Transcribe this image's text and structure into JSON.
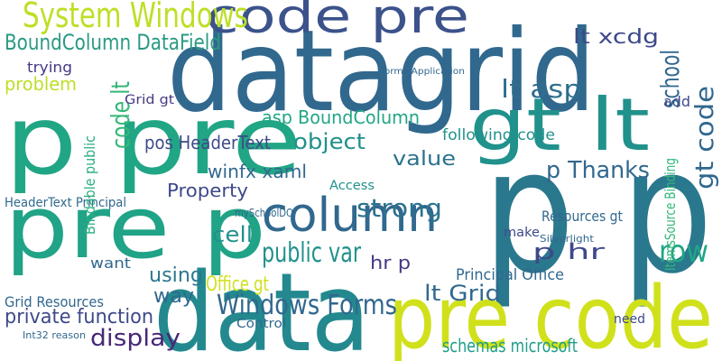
{
  "words": [
    "datagrid",
    "p pre",
    "pre p",
    "p p",
    "pre code",
    "data",
    "code pre",
    "gt lt",
    "column",
    "Windows Forms",
    "System Windows",
    "BoundColumn DataField",
    "lt xcdg",
    "school",
    "gt code",
    "code lt",
    "lt asp",
    "pos HeaderText",
    "asp BoundColumn",
    "object",
    "value",
    "following code",
    "winfx xaml",
    "p Thanks",
    "Property",
    "cell",
    "strong",
    "public var",
    "hr p",
    "p hr",
    "row",
    "lt Grid",
    "Principal Office",
    "using",
    "Office gt",
    "way",
    "private function",
    "Grid Resources",
    "display",
    "schemas microsoft",
    "HeaderText Principal",
    "problem",
    "trying",
    "Resources gt",
    "Access",
    "Bindable public",
    "ItemsSource Binding",
    "Int32 reason",
    "need",
    "make",
    "Control",
    "want",
    "Grid gt",
    "add",
    "Silverlight",
    "Forms Application",
    "mySchoolDO"
  ]
}
